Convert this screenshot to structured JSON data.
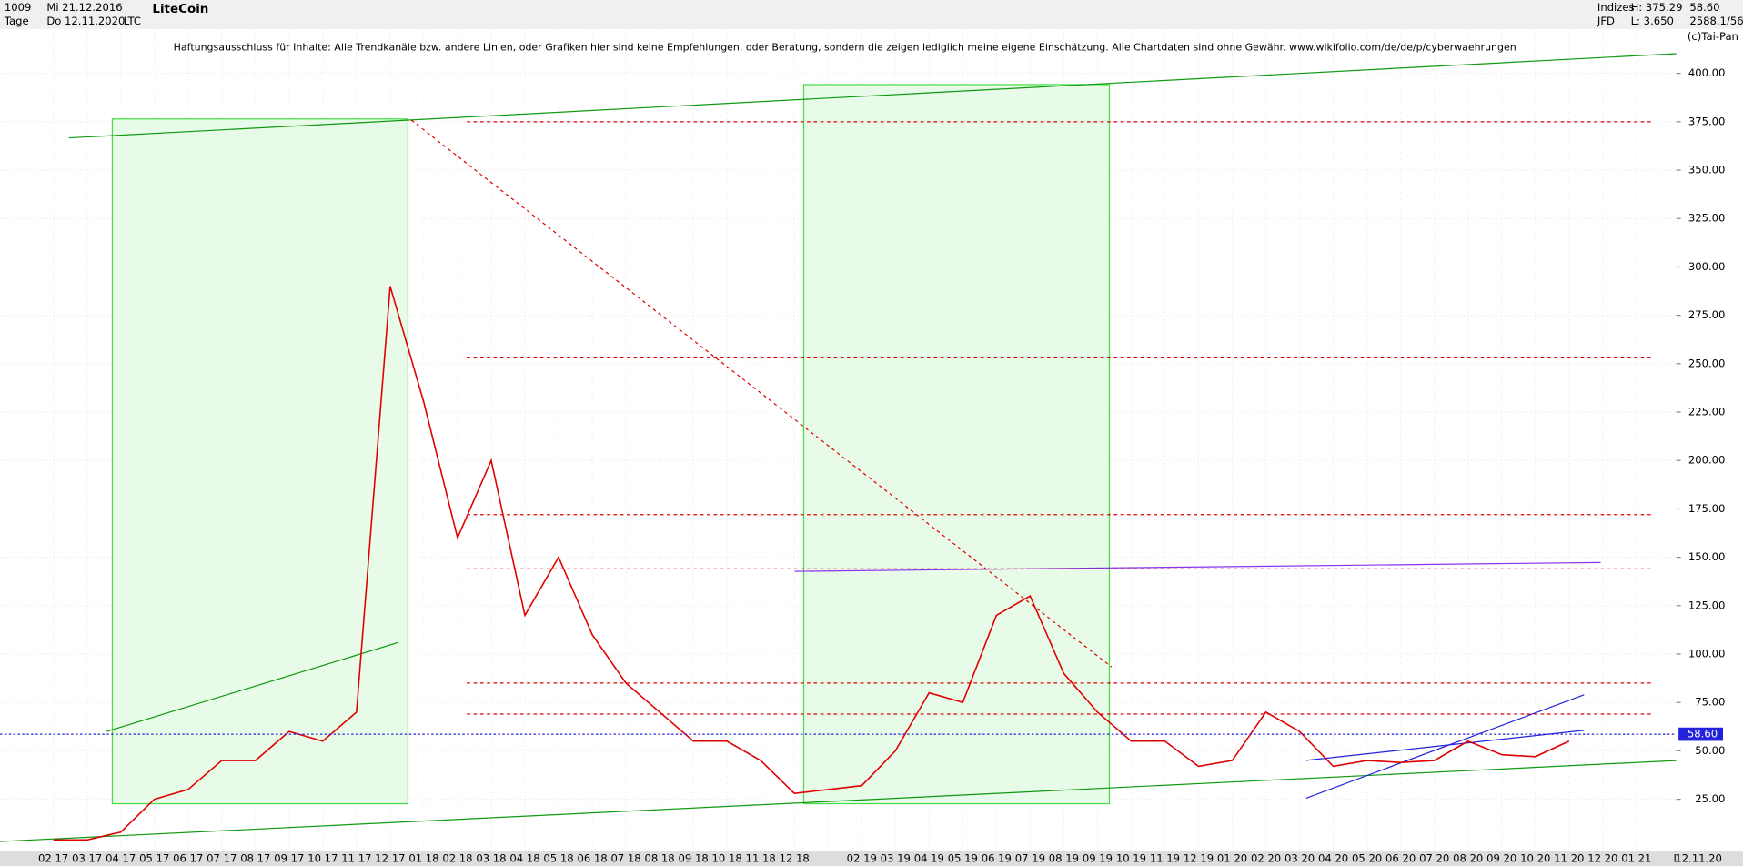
{
  "header": {
    "count": "1009",
    "start_date": "Mi 21.12.2016",
    "period": "Tage",
    "end_date": "Do 12.11.2020",
    "symbol": "LTC",
    "name": "LiteCoin",
    "market": "Indizes",
    "broker": "JFD",
    "high": "H: 375.29",
    "low": "L: 3.650",
    "last": "58.60",
    "ratio": "2588.1/56",
    "copyright": "(c)Tai-Pan",
    "disclaimer": "Haftungsausschluss für Inhalte: Alle Trendkanäle bzw. andere Linien, oder Grafiken hier sind keine Empfehlungen, oder Beratung, sondern die zeigen lediglich meine eigene Einschätzung. Alle Chartdaten sind ohne Gewähr.  www.wikifolio.com/de/de/p/cyberwaehrungen"
  },
  "chart_data": {
    "type": "line",
    "categories": [
      "02 17",
      "03 17",
      "04 17",
      "05 17",
      "06 17",
      "07 17",
      "08 17",
      "09 17",
      "10 17",
      "11 17",
      "12 17",
      "01 18",
      "02 18",
      "03 18",
      "04 18",
      "05 18",
      "06 18",
      "07 18",
      "08 18",
      "09 18",
      "10 18",
      "11 18",
      "12 18",
      null,
      "02 19",
      "03 19",
      "04 19",
      "05 19",
      "06 19",
      "07 19",
      "08 19",
      "09 19",
      "10 19",
      "11 19",
      "12 19",
      "01 20",
      "02 20",
      "03 20",
      "04 20",
      "05 20",
      "06 20",
      "07 20",
      "08 20",
      "09 20",
      "10 20",
      "11 20",
      "12 20",
      "01 21"
    ],
    "series": [
      {
        "name": "LTC",
        "color": "#e00000",
        "values": [
          4,
          4,
          8,
          25,
          30,
          45,
          45,
          60,
          55,
          70,
          290,
          230,
          160,
          200,
          120,
          150,
          110,
          85,
          70,
          55,
          55,
          45,
          28,
          30,
          32,
          50,
          80,
          75,
          120,
          130,
          90,
          70,
          55,
          55,
          42,
          45,
          70,
          60,
          42,
          45,
          44,
          45,
          55,
          48,
          47,
          55,
          null,
          null
        ]
      }
    ],
    "ylim": [
      0,
      428
    ],
    "yticks": [
      {
        "value": 25,
        "label": "25.00"
      },
      {
        "value": 50,
        "label": "50.00"
      },
      {
        "value": 75,
        "label": "75.00"
      },
      {
        "value": 100,
        "label": "100.00"
      },
      {
        "value": 125,
        "label": "125.00"
      },
      {
        "value": 150,
        "label": "150.00"
      },
      {
        "value": 175,
        "label": "175.00"
      },
      {
        "value": 200,
        "label": "200.00"
      },
      {
        "value": 225,
        "label": "225.00"
      },
      {
        "value": 250,
        "label": "250.00"
      },
      {
        "value": 275,
        "label": "275.00"
      },
      {
        "value": 300,
        "label": "300.00"
      },
      {
        "value": 325,
        "label": "325.00"
      },
      {
        "value": 350,
        "label": "350.00"
      },
      {
        "value": 375,
        "label": "375.00"
      },
      {
        "value": 400,
        "label": "400.00"
      }
    ],
    "last_price": {
      "value": 58.6,
      "label": "58.60"
    },
    "last_date": "12.11.20",
    "axis_end": "L",
    "levels": [
      375,
      253,
      172,
      144,
      85,
      69
    ],
    "level_color": "#e00000",
    "grid": true
  }
}
